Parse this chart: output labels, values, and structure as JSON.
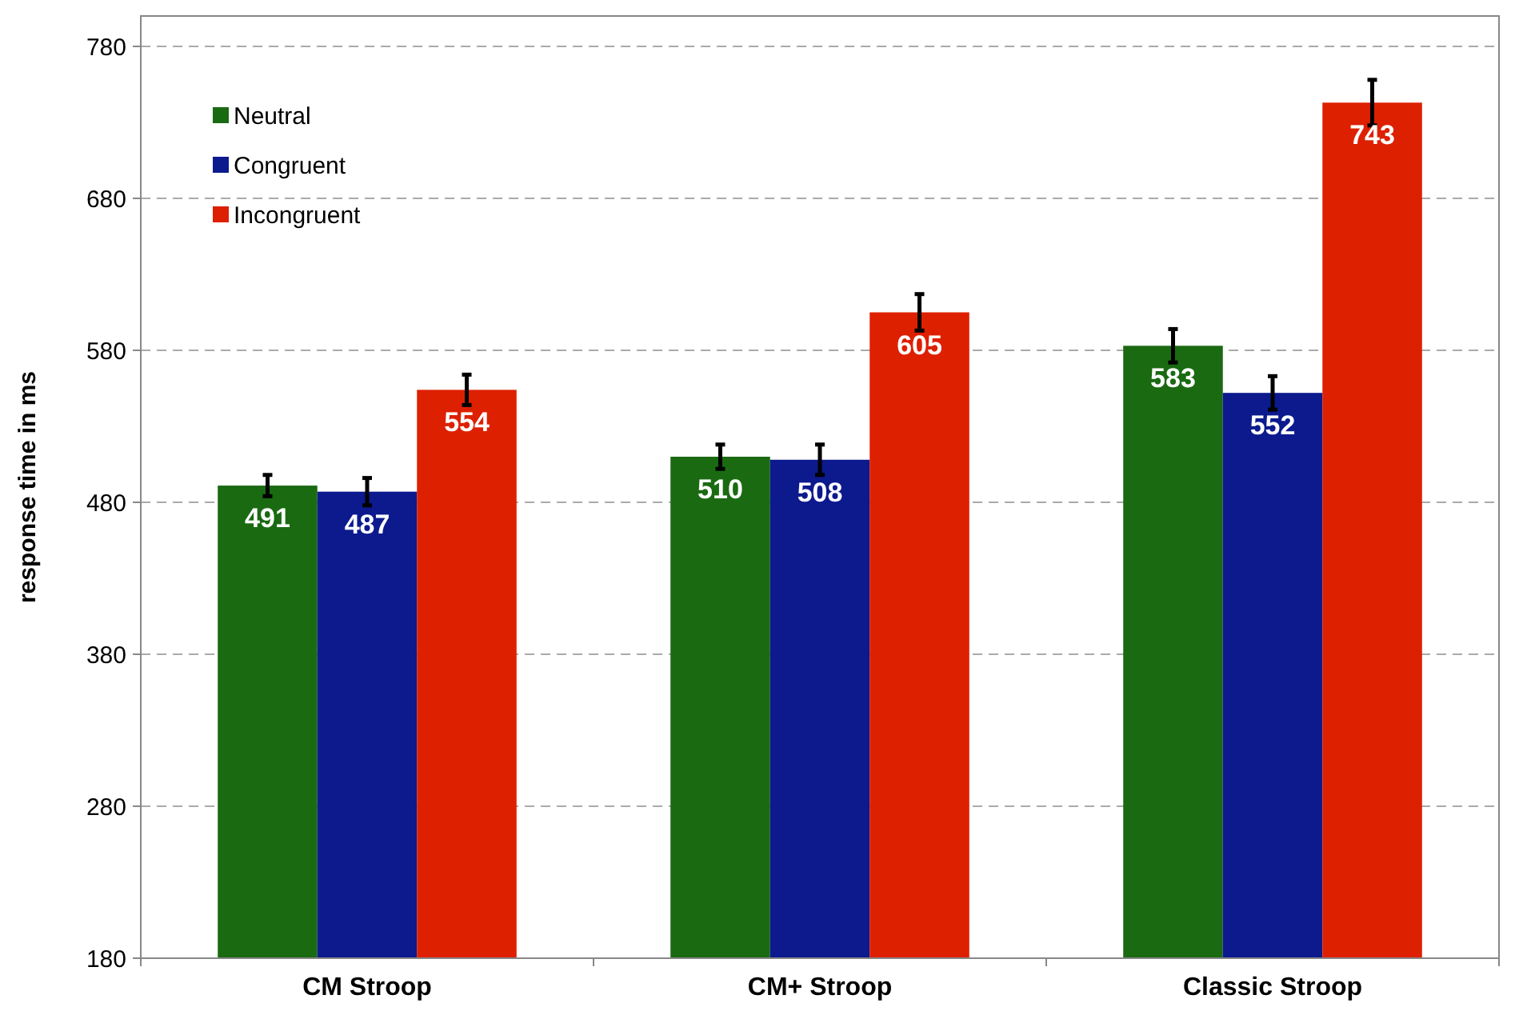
{
  "chart_data": {
    "type": "bar",
    "ylabel": "response time in ms",
    "categories": [
      "CM Stroop",
      "CM+ Stroop",
      "Classic Stroop"
    ],
    "series": [
      {
        "name": "Neutral",
        "color": "#1a6a12",
        "values": [
          491,
          510,
          583
        ],
        "errors": [
          7,
          8,
          11
        ]
      },
      {
        "name": "Congruent",
        "color": "#0c1a8e",
        "values": [
          487,
          508,
          552
        ],
        "errors": [
          9,
          10,
          11
        ]
      },
      {
        "name": "Incongruent",
        "color": "#dd2000",
        "values": [
          554,
          605,
          743
        ],
        "errors": [
          10,
          12,
          15
        ]
      }
    ],
    "ylim": [
      180,
      800
    ],
    "yticks": [
      180,
      280,
      380,
      480,
      580,
      680,
      780
    ],
    "grid": "y",
    "legend": "top left",
    "data_labels": true
  }
}
